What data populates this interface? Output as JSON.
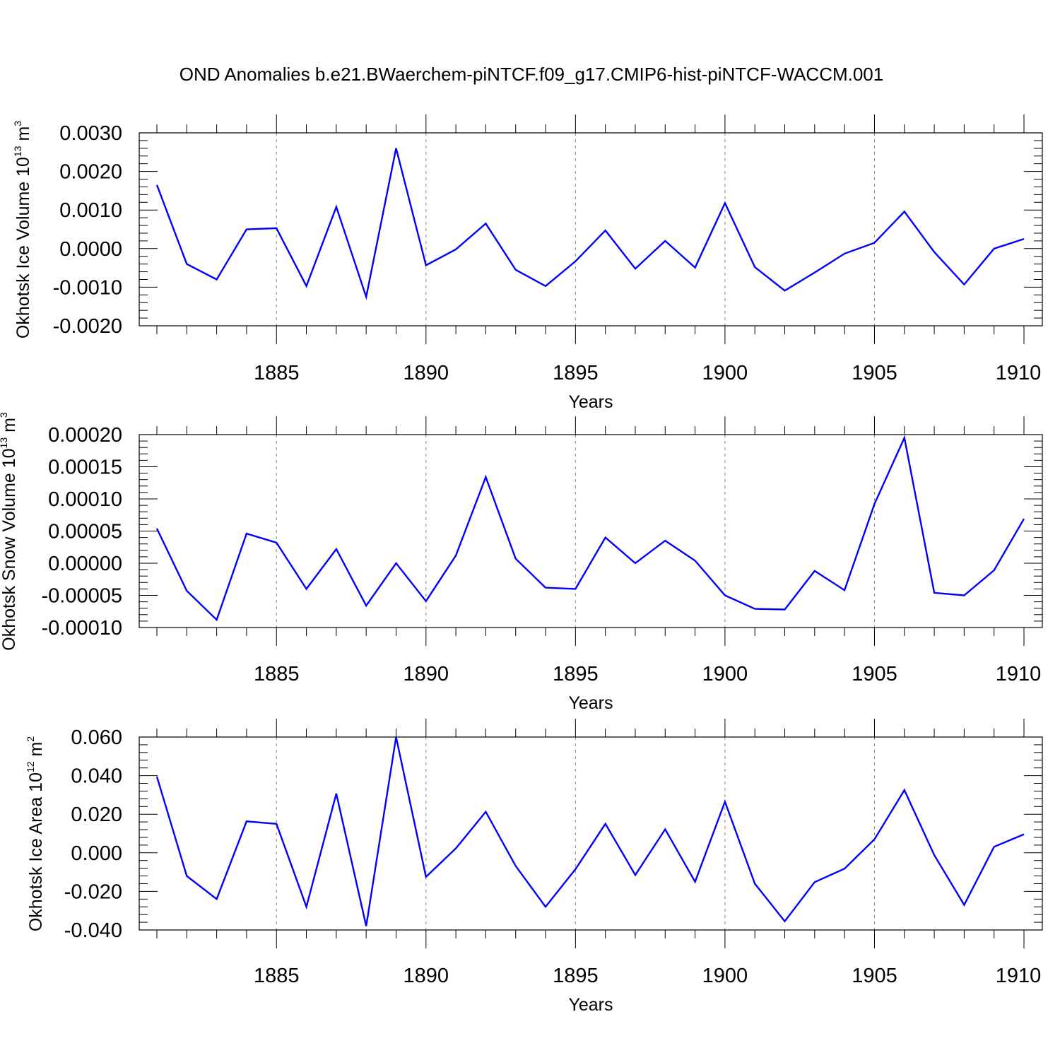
{
  "figure": {
    "title": "OND Anomalies b.e21.BWaerchem-piNTCF.f09_g17.CMIP6-hist-piNTCF-WACCM.001"
  },
  "colors": {
    "line": "#0000ff",
    "axis": "#000000",
    "grid": "#888888"
  },
  "chart_data": [
    {
      "type": "line",
      "ylabel": {
        "main": "Okhotsk Ice Volume 10",
        "sup1": "13",
        "unit": " m",
        "sup2": "3"
      },
      "xlabel": "Years",
      "xlim": [
        1881,
        1910
      ],
      "ylim": [
        -0.002,
        0.003
      ],
      "x_ticks": [
        "1885",
        "1890",
        "1895",
        "1900",
        "1905",
        "1910"
      ],
      "y_ticks": [
        "-0.0020",
        "-0.0010",
        "0.0000",
        "0.0010",
        "0.0020",
        "0.0030"
      ],
      "x": [
        1881,
        1882,
        1883,
        1884,
        1885,
        1886,
        1887,
        1888,
        1889,
        1890,
        1891,
        1892,
        1893,
        1894,
        1895,
        1896,
        1897,
        1898,
        1899,
        1900,
        1901,
        1902,
        1903,
        1904,
        1905,
        1906,
        1907,
        1908,
        1909,
        1910
      ],
      "values": [
        0.00165,
        -0.0004,
        -0.0008,
        0.0005,
        0.00053,
        -0.00097,
        0.00108,
        -0.00125,
        0.0026,
        -0.00043,
        -2e-05,
        0.00065,
        -0.00055,
        -0.00097,
        -0.00033,
        0.00047,
        -0.00052,
        0.0002,
        -0.00049,
        0.00118,
        -0.00048,
        -0.00109,
        -0.00062,
        -0.00013,
        0.00015,
        0.00096,
        -9e-05,
        -0.00093,
        0.0,
        0.00025
      ]
    },
    {
      "type": "line",
      "ylabel": {
        "main": "Okhotsk Snow Volume 10",
        "sup1": "13",
        "unit": " m",
        "sup2": "3"
      },
      "xlabel": "Years",
      "xlim": [
        1881,
        1910
      ],
      "ylim": [
        -0.0001,
        0.0002
      ],
      "x_ticks": [
        "1885",
        "1890",
        "1895",
        "1900",
        "1905",
        "1910"
      ],
      "y_ticks": [
        "-0.00010",
        "-0.00005",
        "0.00000",
        "0.00005",
        "0.00010",
        "0.00015",
        "0.00020"
      ],
      "x": [
        1881,
        1882,
        1883,
        1884,
        1885,
        1886,
        1887,
        1888,
        1889,
        1890,
        1891,
        1892,
        1893,
        1894,
        1895,
        1896,
        1897,
        1898,
        1899,
        1900,
        1901,
        1902,
        1903,
        1904,
        1905,
        1906,
        1907,
        1908,
        1909,
        1910
      ],
      "values": [
        5.4e-05,
        -4.3e-05,
        -8.8e-05,
        4.6e-05,
        3.2e-05,
        -4e-05,
        2.2e-05,
        -6.6e-05,
        0.0,
        -5.9e-05,
        1.2e-05,
        0.000134,
        7e-06,
        -3.8e-05,
        -4e-05,
        4e-05,
        0.0,
        3.5e-05,
        4e-06,
        -5e-05,
        -7.1e-05,
        -7.2e-05,
        -1.2e-05,
        -4.2e-05,
        9.2e-05,
        0.000195,
        -4.6e-05,
        -5e-05,
        -1.1e-05,
        6.9e-05
      ]
    },
    {
      "type": "line",
      "ylabel": {
        "main": "Okhotsk Ice Area 10",
        "sup1": "12",
        "unit": " m",
        "sup2": "2"
      },
      "xlabel": "Years",
      "xlim": [
        1881,
        1910
      ],
      "ylim": [
        -0.04,
        0.06
      ],
      "x_ticks": [
        "1885",
        "1890",
        "1895",
        "1900",
        "1905",
        "1910"
      ],
      "y_ticks": [
        "-0.040",
        "-0.020",
        "0.000",
        "0.020",
        "0.040",
        "0.060"
      ],
      "x": [
        1881,
        1882,
        1883,
        1884,
        1885,
        1886,
        1887,
        1888,
        1889,
        1890,
        1891,
        1892,
        1893,
        1894,
        1895,
        1896,
        1897,
        1898,
        1899,
        1900,
        1901,
        1902,
        1903,
        1904,
        1905,
        1906,
        1907,
        1908,
        1909,
        1910
      ],
      "values": [
        0.0395,
        -0.012,
        -0.024,
        0.0163,
        0.015,
        -0.028,
        0.0307,
        -0.038,
        0.06,
        -0.0125,
        0.0023,
        0.0213,
        -0.0068,
        -0.028,
        -0.0085,
        0.015,
        -0.0115,
        0.0122,
        -0.015,
        0.0265,
        -0.016,
        -0.0355,
        -0.0152,
        -0.0082,
        0.007,
        0.0325,
        -0.0012,
        -0.027,
        0.0031,
        0.0096
      ]
    }
  ]
}
